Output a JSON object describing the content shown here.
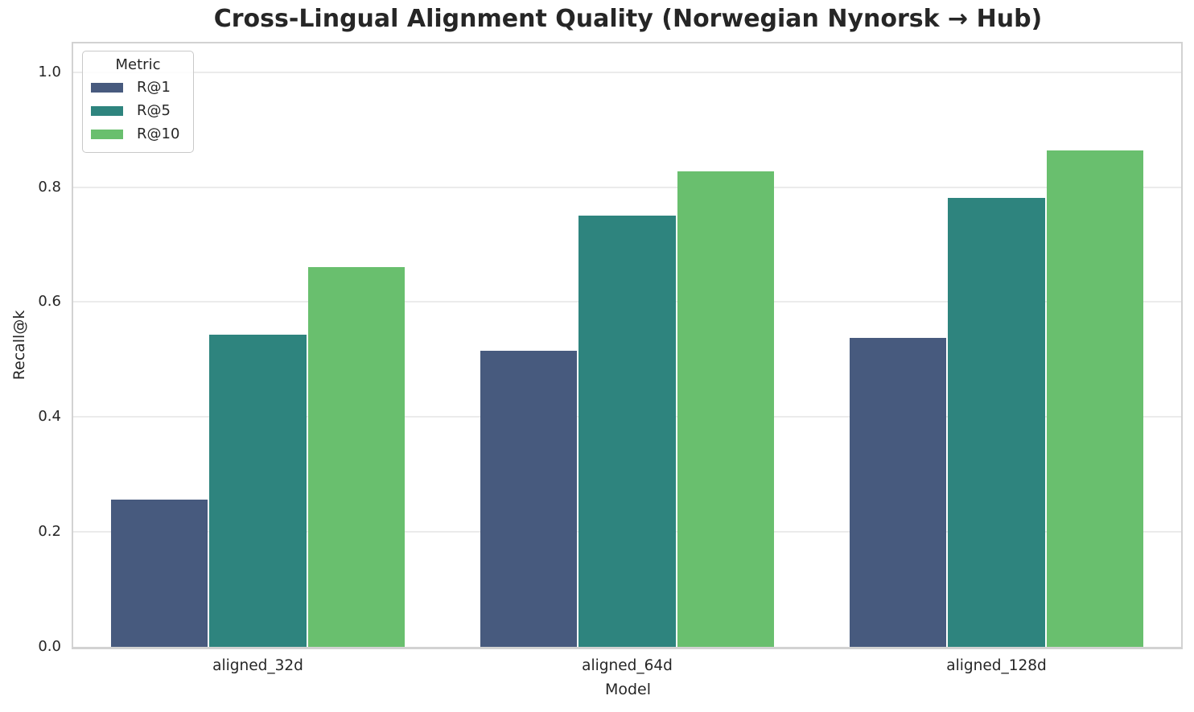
{
  "chart_data": {
    "type": "bar",
    "title": "Cross-Lingual Alignment Quality (Norwegian Nynorsk → Hub)",
    "xlabel": "Model",
    "ylabel": "Recall@k",
    "categories": [
      "aligned_32d",
      "aligned_64d",
      "aligned_128d"
    ],
    "series": [
      {
        "name": "R@1",
        "color": "#475a7e",
        "values": [
          0.256,
          0.515,
          0.537
        ]
      },
      {
        "name": "R@5",
        "color": "#2e847e",
        "values": [
          0.543,
          0.751,
          0.781
        ]
      },
      {
        "name": "R@10",
        "color": "#69bf6e",
        "values": [
          0.661,
          0.827,
          0.864
        ]
      }
    ],
    "ylim": [
      0,
      1.05
    ],
    "ytick_labels": [
      "0.0",
      "0.2",
      "0.4",
      "0.6",
      "0.8",
      "1.0"
    ],
    "grid": true,
    "legend": {
      "title": "Metric",
      "position": "upper-left"
    },
    "colors": {
      "grid": "#ebebeb",
      "spine": "#d2d2d2",
      "text": "#262626",
      "background": "#ffffff"
    }
  }
}
